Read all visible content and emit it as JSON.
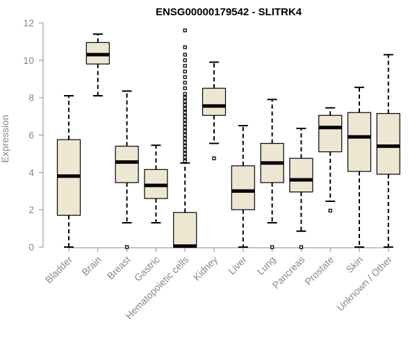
{
  "chart_data": {
    "type": "boxplot",
    "title": "ENSG00000179542 - SLITRK4",
    "xlabel": "",
    "ylabel": "Expression",
    "ylim": [
      0,
      12
    ],
    "yticks": [
      0,
      2,
      4,
      6,
      8,
      10,
      12
    ],
    "grid": false,
    "legend": "none",
    "colors": {
      "box_fill": "#ede6d0",
      "box_stroke": "#000000",
      "median": "#000000",
      "axis": "#888888",
      "outlier": "#000000"
    },
    "categories": [
      "Bladder",
      "Brain",
      "Breast",
      "Gastric",
      "Hematopoietic cells",
      "Kidney",
      "Liver",
      "Lung",
      "Pancreas",
      "Prostate",
      "Skin",
      "Unknown / Other"
    ],
    "boxes": [
      {
        "category": "Bladder",
        "whisker_low": 0.0,
        "q1": 1.7,
        "median": 3.8,
        "q3": 5.75,
        "whisker_high": 8.1,
        "outliers": []
      },
      {
        "category": "Brain",
        "whisker_low": 8.1,
        "q1": 9.8,
        "median": 10.3,
        "q3": 10.95,
        "whisker_high": 11.4,
        "outliers": []
      },
      {
        "category": "Breast",
        "whisker_low": 1.3,
        "q1": 3.45,
        "median": 4.55,
        "q3": 5.4,
        "whisker_high": 8.35,
        "outliers": [
          0.0
        ]
      },
      {
        "category": "Gastric",
        "whisker_low": 1.3,
        "q1": 2.6,
        "median": 3.3,
        "q3": 4.15,
        "whisker_high": 5.45,
        "outliers": []
      },
      {
        "category": "Hematopoietic cells",
        "whisker_low": 0.0,
        "q1": 0.0,
        "median": 0.05,
        "q3": 1.85,
        "whisker_high": 4.5,
        "outliers": [
          4.6,
          4.8,
          5.0,
          5.2,
          5.4,
          5.6,
          5.8,
          6.0,
          6.2,
          6.4,
          6.6,
          6.8,
          7.0,
          7.2,
          7.4,
          7.6,
          7.8,
          8.0,
          8.2,
          8.5,
          8.8,
          9.1,
          9.4,
          9.7,
          10.0,
          10.3,
          10.7,
          11.6
        ]
      },
      {
        "category": "Kidney",
        "whisker_low": 5.55,
        "q1": 7.05,
        "median": 7.55,
        "q3": 8.5,
        "whisker_high": 9.9,
        "outliers": [
          4.75
        ]
      },
      {
        "category": "Liver",
        "whisker_low": 0.0,
        "q1": 2.0,
        "median": 3.0,
        "q3": 4.35,
        "whisker_high": 6.5,
        "outliers": []
      },
      {
        "category": "Lung",
        "whisker_low": 1.3,
        "q1": 3.45,
        "median": 4.5,
        "q3": 5.55,
        "whisker_high": 7.9,
        "outliers": [
          0.0
        ]
      },
      {
        "category": "Pancreas",
        "whisker_low": 0.85,
        "q1": 2.95,
        "median": 3.6,
        "q3": 4.75,
        "whisker_high": 6.35,
        "outliers": [
          0.0
        ]
      },
      {
        "category": "Prostate",
        "whisker_low": 2.45,
        "q1": 5.1,
        "median": 6.4,
        "q3": 7.05,
        "whisker_high": 7.45,
        "outliers": [
          1.95
        ]
      },
      {
        "category": "Skin",
        "whisker_low": 0.0,
        "q1": 4.05,
        "median": 5.9,
        "q3": 7.2,
        "whisker_high": 8.55,
        "outliers": []
      },
      {
        "category": "Unknown / Other",
        "whisker_low": 0.0,
        "q1": 3.9,
        "median": 5.4,
        "q3": 7.15,
        "whisker_high": 10.3,
        "outliers": []
      }
    ]
  }
}
